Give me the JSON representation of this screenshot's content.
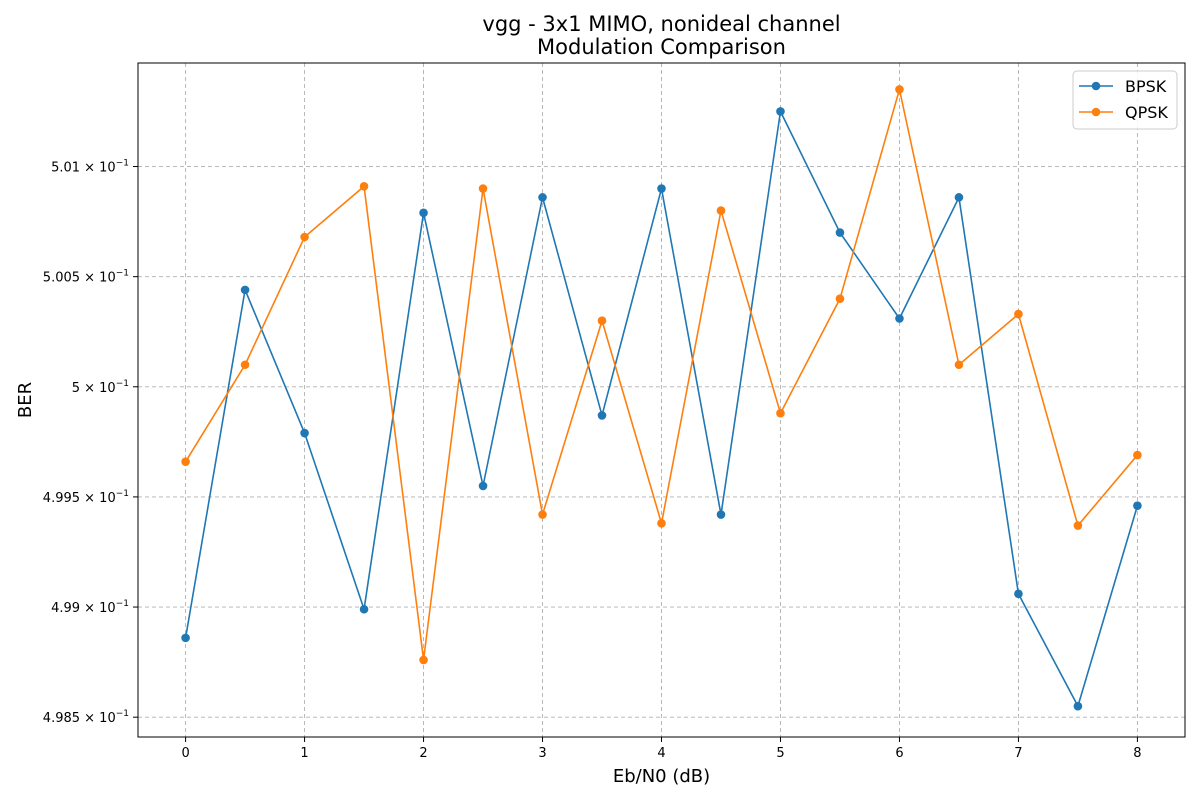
{
  "chart_data": {
    "type": "line",
    "title": "vgg - 3x1 MIMO, nonideal channel",
    "subtitle": "Modulation Comparison",
    "xlabel": "Eb/N0 (dB)",
    "ylabel": "BER",
    "xlim": [
      -0.4,
      8.4
    ],
    "ylim": [
      0.49841,
      0.50147
    ],
    "x_ticks": [
      0,
      1,
      2,
      3,
      4,
      5,
      6,
      7,
      8
    ],
    "x_tick_labels": [
      "0",
      "1",
      "2",
      "3",
      "4",
      "5",
      "6",
      "7",
      "8"
    ],
    "y_ticks": [
      0.4985,
      0.499,
      0.4995,
      0.5,
      0.5005,
      0.501
    ],
    "y_tick_labels": [
      {
        "mantissa": "4.985",
        "exp": "−1"
      },
      {
        "mantissa": "4.99",
        "exp": "−1"
      },
      {
        "mantissa": "4.995",
        "exp": "−1"
      },
      {
        "mantissa": "5",
        "exp": "−1"
      },
      {
        "mantissa": "5.005",
        "exp": "−1"
      },
      {
        "mantissa": "5.01",
        "exp": "−1"
      }
    ],
    "grid": true,
    "legend_position": "top-right",
    "x": [
      0,
      0.5,
      1,
      1.5,
      2,
      2.5,
      3,
      3.5,
      4,
      4.5,
      5,
      5.5,
      6,
      6.5,
      7,
      7.5,
      8
    ],
    "series": [
      {
        "name": "BPSK",
        "color": "#1f77b4",
        "values": [
          0.49886,
          0.50044,
          0.49979,
          0.49899,
          0.50079,
          0.49955,
          0.50086,
          0.49987,
          0.5009,
          0.49942,
          0.50125,
          0.5007,
          0.50031,
          0.50086,
          0.49906,
          0.49855,
          0.49946
        ]
      },
      {
        "name": "QPSK",
        "color": "#ff7f0e",
        "values": [
          0.49966,
          0.5001,
          0.50068,
          0.50091,
          0.49876,
          0.5009,
          0.49942,
          0.5003,
          0.49938,
          0.5008,
          0.49988,
          0.5004,
          0.50135,
          0.5001,
          0.50033,
          0.49937,
          0.49969
        ]
      }
    ]
  }
}
